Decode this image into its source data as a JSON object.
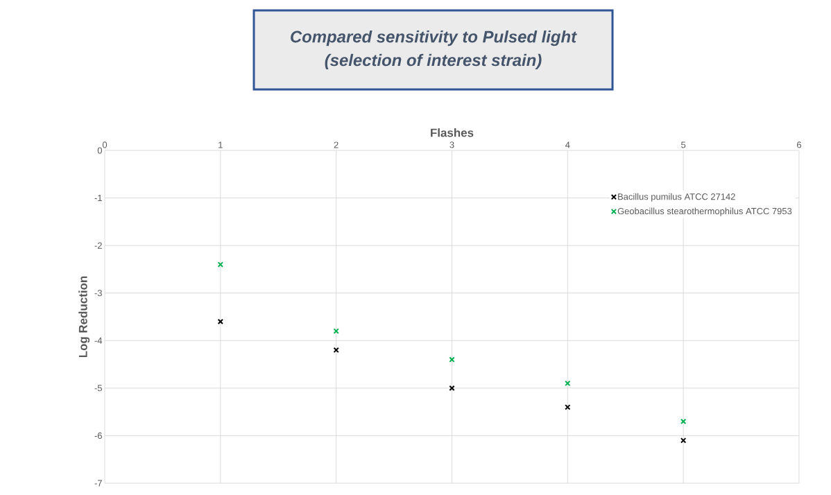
{
  "chart_data": {
    "type": "scatter",
    "title": "Compared sensitivity to Pulsed light\n(selection of interest strain)",
    "xlabel": "Flashes",
    "ylabel": "Log Reduction",
    "series": [
      {
        "name": "Bacillus pumilus ATCC 27142",
        "color": "#000000",
        "x": [
          1,
          2,
          3,
          4,
          5
        ],
        "values": [
          -3.6,
          -4.2,
          -5.0,
          -5.4,
          -6.1
        ]
      },
      {
        "name": "Geobacillus stearothermophilus ATCC 7953",
        "color": "#00b050",
        "x": [
          1,
          2,
          3,
          4,
          5
        ],
        "values": [
          -2.4,
          -3.8,
          -4.4,
          -4.9,
          -5.7
        ]
      }
    ],
    "xlim": [
      0,
      6
    ],
    "xticks": [
      0,
      1,
      2,
      3,
      4,
      5,
      6
    ],
    "ylim": [
      -7,
      0
    ],
    "yticks": [
      -7,
      -6,
      -5,
      -4,
      -3,
      -2,
      -1,
      0
    ],
    "grid": true,
    "legend": "top right",
    "marker": "cross"
  }
}
